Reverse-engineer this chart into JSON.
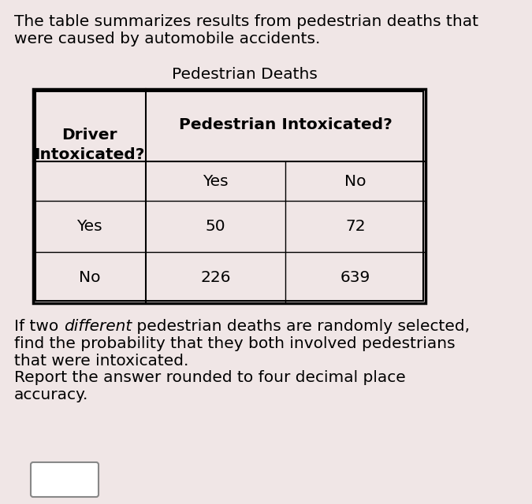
{
  "background_color": "#f0e6e6",
  "title_text_line1": "The table summarizes results from pedestrian deaths that",
  "title_text_line2": "were caused by automobile accidents.",
  "table_title": "Pedestrian Deaths",
  "col_header_merged": "Pedestrian Intoxicated?",
  "col_sub_headers": [
    "Yes",
    "No"
  ],
  "row_header_label": "Driver\nIntoxicated?",
  "row_labels": [
    "Yes",
    "No"
  ],
  "data": [
    [
      50,
      72
    ],
    [
      226,
      639
    ]
  ],
  "q_line1_pre": "If two ",
  "q_line1_italic": "different",
  "q_line1_post": " pedestrian deaths are randomly selected,",
  "q_line2": "find the probability that they both involved pedestrians",
  "q_line3": "that were intoxicated.",
  "q_line4": "Report the answer rounded to four decimal place",
  "q_line5": "accuracy.",
  "font_size_title": 14.5,
  "font_size_table": 14.5,
  "font_size_question": 14.5
}
